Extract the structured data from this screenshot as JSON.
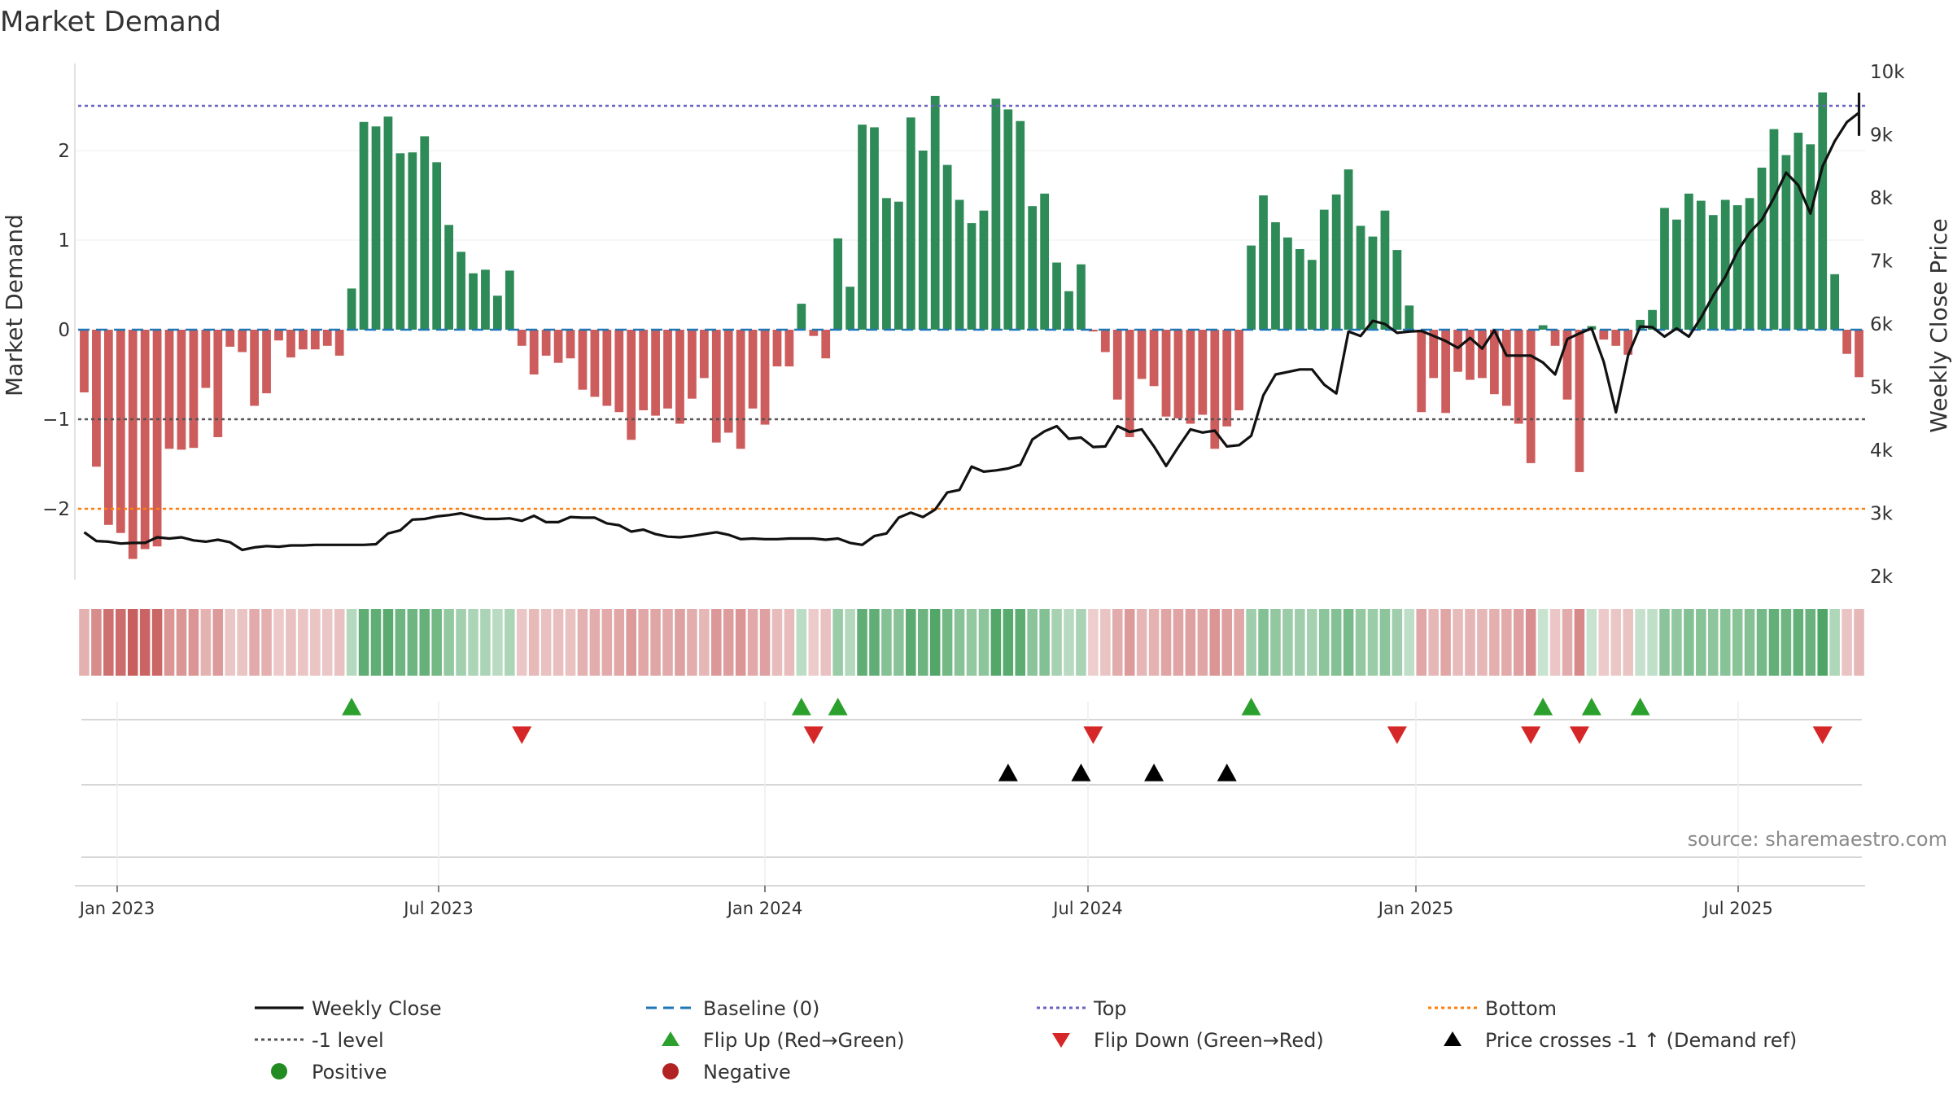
{
  "chart_data": {
    "type": "bar",
    "title": "Market Demand",
    "ylabel": "Market Demand",
    "y2label": "Weekly Close Price",
    "ylim": [
      -2.9,
      2.8
    ],
    "y2lim": [
      1800,
      10200
    ],
    "yticks": [
      "2",
      "1",
      "0",
      "−1",
      "−2"
    ],
    "y2ticks": [
      "10k",
      "9k",
      "8k",
      "7k",
      "6k",
      "5k",
      "4k",
      "3k",
      "2k"
    ],
    "xticks": [
      "Jan 2023",
      "Jul 2023",
      "Jan 2024",
      "Jul 2024",
      "Jan 2025",
      "Jul 2025"
    ],
    "source": "source: sharemaestro.com",
    "reference_lines": {
      "top": 2.5,
      "minus_one": -1,
      "bottom": -2,
      "baseline": 0
    },
    "demand_values": [
      -0.7,
      -1.53,
      -2.18,
      -2.27,
      -2.56,
      -2.45,
      -2.42,
      -1.33,
      -1.34,
      -1.32,
      -0.65,
      -1.2,
      -0.19,
      -0.25,
      -0.85,
      -0.71,
      -0.12,
      -0.31,
      -0.22,
      -0.22,
      -0.18,
      -0.29,
      0.46,
      2.32,
      2.27,
      2.38,
      1.97,
      1.98,
      2.16,
      1.87,
      1.17,
      0.87,
      0.63,
      0.67,
      0.38,
      0.66,
      -0.18,
      -0.5,
      -0.29,
      -0.37,
      -0.32,
      -0.67,
      -0.75,
      -0.85,
      -0.92,
      -1.23,
      -0.9,
      -0.96,
      -0.88,
      -1.05,
      -0.77,
      -0.54,
      -1.26,
      -1.15,
      -1.33,
      -0.88,
      -1.06,
      -0.41,
      -0.41,
      0.29,
      -0.07,
      -0.32,
      1.02,
      0.48,
      2.29,
      2.26,
      1.47,
      1.43,
      2.37,
      2.0,
      2.61,
      1.84,
      1.45,
      1.19,
      1.33,
      2.58,
      2.46,
      2.33,
      1.38,
      1.52,
      0.75,
      0.43,
      0.73,
      -0.02,
      -0.25,
      -0.78,
      -1.2,
      -0.55,
      -0.63,
      -0.97,
      -0.99,
      -1.05,
      -0.95,
      -1.33,
      -1.08,
      -0.9,
      0.94,
      1.5,
      1.2,
      1.03,
      0.9,
      0.78,
      1.34,
      1.51,
      1.79,
      1.16,
      1.04,
      1.33,
      0.89,
      0.27,
      -0.92,
      -0.54,
      -0.93,
      -0.47,
      -0.56,
      -0.54,
      -0.72,
      -0.85,
      -1.05,
      -1.49,
      0.05,
      -0.18,
      -0.78,
      -1.59,
      0.04,
      -0.11,
      -0.18,
      -0.28,
      0.11,
      0.22,
      1.36,
      1.23,
      1.52,
      1.44,
      1.28,
      1.45,
      1.39,
      1.47,
      1.81,
      2.24,
      1.95,
      2.2,
      2.07,
      2.65,
      0.62,
      -0.27,
      -0.53
    ],
    "price_values": [
      2700,
      2560,
      2550,
      2520,
      2530,
      2530,
      2620,
      2600,
      2620,
      2570,
      2550,
      2580,
      2540,
      2420,
      2460,
      2480,
      2470,
      2490,
      2490,
      2500,
      2500,
      2500,
      2500,
      2500,
      2510,
      2680,
      2730,
      2900,
      2910,
      2950,
      2970,
      3000,
      2950,
      2910,
      2910,
      2920,
      2880,
      2960,
      2860,
      2860,
      2940,
      2930,
      2930,
      2840,
      2810,
      2710,
      2740,
      2670,
      2630,
      2620,
      2640,
      2670,
      2700,
      2660,
      2590,
      2600,
      2590,
      2590,
      2600,
      2600,
      2600,
      2580,
      2600,
      2530,
      2500,
      2640,
      2680,
      2930,
      3010,
      2940,
      3060,
      3330,
      3370,
      3740,
      3660,
      3680,
      3710,
      3770,
      4170,
      4300,
      4380,
      4180,
      4200,
      4050,
      4060,
      4380,
      4290,
      4330,
      4060,
      3750,
      4050,
      4330,
      4280,
      4310,
      4060,
      4080,
      4230,
      4870,
      5200,
      5240,
      5280,
      5280,
      5040,
      4900,
      5880,
      5810,
      6050,
      6000,
      5860,
      5880,
      5890,
      5810,
      5730,
      5620,
      5780,
      5610,
      5900,
      5500,
      5500,
      5500,
      5390,
      5200,
      5760,
      5850,
      5930,
      5400,
      4600,
      5500,
      5960,
      5950,
      5800,
      5930,
      5800,
      6100,
      6450,
      6750,
      7150,
      7450,
      7650,
      8000,
      8400,
      8200,
      7750,
      8500,
      8900,
      9200,
      9350,
      9360,
      9550,
      9630,
      9650,
      9080,
      9000,
      9010
    ],
    "heat_strip": {
      "description": "weekly demand heat strip (same values as demand_values)",
      "positive_color": "#4fa566",
      "negative_color": "#c75c5c"
    },
    "flip_up_markers_x": [
      22,
      59,
      62,
      96,
      120,
      124,
      128
    ],
    "flip_down_markers_x": [
      36,
      60,
      83,
      108,
      119,
      123,
      143
    ],
    "price_cross_markers_x": [
      76,
      82,
      88,
      94
    ],
    "legend": [
      {
        "label": "Weekly Close",
        "symbol": "solid-line",
        "color": "#111111"
      },
      {
        "label": "Baseline (0)",
        "symbol": "dashed-line",
        "color": "#1f77b4"
      },
      {
        "label": "Top",
        "symbol": "dotted-line",
        "color": "#6a63c2"
      },
      {
        "label": "Bottom",
        "symbol": "dotted-line",
        "color": "#ff7f0e"
      },
      {
        "label": "-1 level",
        "symbol": "dotted-line",
        "color": "#555555"
      },
      {
        "label": "Flip Up (Red→Green)",
        "symbol": "triangle-up",
        "color": "#2ca02c"
      },
      {
        "label": "Flip Down (Green→Red)",
        "symbol": "triangle-down",
        "color": "#d62728"
      },
      {
        "label": "Price crosses -1 ↑ (Demand ref)",
        "symbol": "triangle-up",
        "color": "#000000"
      },
      {
        "label": "Positive",
        "symbol": "circle",
        "color": "#228b22"
      },
      {
        "label": "Negative",
        "symbol": "circle",
        "color": "#b22222"
      }
    ],
    "colors": {
      "positive_bar": "#2e8b57",
      "negative_bar": "#cd5c5c",
      "price_line": "#111111"
    }
  }
}
